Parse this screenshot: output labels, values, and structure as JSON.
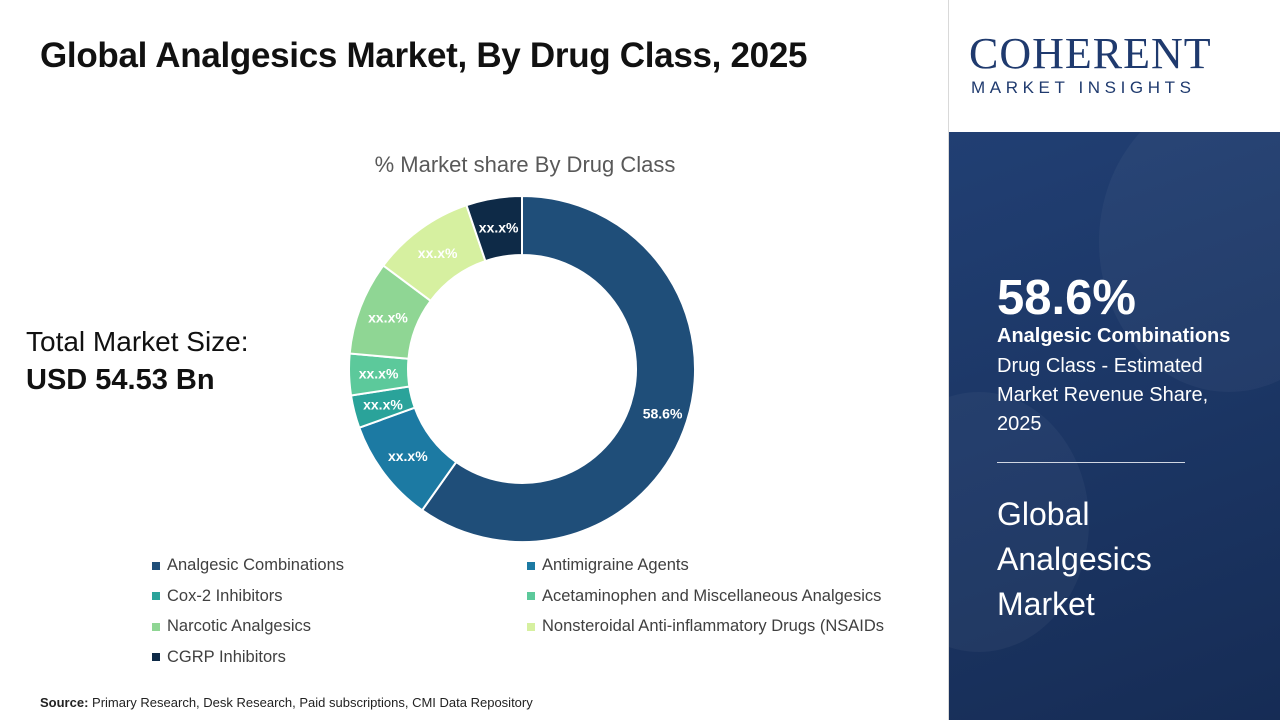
{
  "header": {
    "title": "Global Analgesics Market, By Drug Class, 2025"
  },
  "summary": {
    "total_label": "Total Market Size:",
    "total_value": "USD 54.53 Bn"
  },
  "source": {
    "label": "Source:",
    "text": "Primary Research, Desk Research, Paid subscriptions, CMI Data Repository"
  },
  "logo": {
    "main": "COHERENT",
    "sub": "MARKET INSIGHTS"
  },
  "highlight": {
    "percent": "58.6%",
    "segment": "Analgesic Combinations",
    "description": "Drug Class - Estimated Market Revenue Share, 2025",
    "market": "Global Analgesics Market"
  },
  "chart_data": {
    "type": "pie",
    "title": "% Market share By Drug Class",
    "categories": [
      "Analgesic Combinations",
      "Antimigraine Agents",
      "Cox-2 Inhibitors",
      "Acetaminophen and Miscellaneous Analgesics",
      "Narcotic Analgesics",
      "Nonsteroidal Anti-inflammatory Drugs (NSAIDs",
      "CGRP Inhibitors"
    ],
    "values": [
      58.6,
      9.5,
      3.0,
      3.8,
      8.6,
      9.4,
      5.1
    ],
    "labels": [
      "58.6%",
      "xx.x%",
      "xx.x%",
      "xx.x%",
      "xx.x%",
      "xx.x%",
      "xx.x%"
    ],
    "colors": [
      "#1f4e79",
      "#1c7aa3",
      "#2aa39a",
      "#5cc99b",
      "#8fd694",
      "#d6f0a0",
      "#0e2a47"
    ],
    "legend_position": "bottom"
  }
}
